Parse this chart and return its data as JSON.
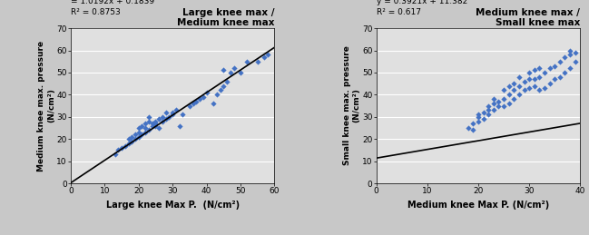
{
  "plot1": {
    "title": "Large knee max /\nMedium knee max",
    "xlabel": "Large knee Max P.  (N/cm²)",
    "ylabel": "Medium knee max. pressure\n(N/cm²)",
    "equation": "= 1.0192x + 0.1839",
    "r2": "R² = 0.8753",
    "slope": 1.0192,
    "intercept": 0.1839,
    "xlim": [
      0,
      60
    ],
    "ylim": [
      0,
      70
    ],
    "xticks": [
      0,
      10,
      20,
      30,
      40,
      50,
      60
    ],
    "yticks": [
      0,
      10,
      20,
      30,
      40,
      50,
      60,
      70
    ],
    "scatter_x": [
      13,
      14,
      15,
      16,
      17,
      17,
      18,
      18,
      19,
      19,
      20,
      20,
      20,
      21,
      21,
      22,
      22,
      22,
      23,
      23,
      23,
      24,
      24,
      25,
      25,
      25,
      26,
      26,
      27,
      27,
      28,
      28,
      29,
      30,
      30,
      31,
      32,
      33,
      35,
      36,
      37,
      38,
      39,
      40,
      42,
      43,
      44,
      45,
      45,
      46,
      47,
      48,
      50,
      52,
      55,
      57,
      58
    ],
    "scatter_y": [
      13,
      15,
      16,
      17,
      18,
      20,
      19,
      21,
      20,
      22,
      21,
      25,
      23,
      22,
      26,
      23,
      27,
      25,
      24,
      28,
      30,
      26,
      27,
      27,
      28,
      26,
      29,
      25,
      28,
      30,
      29,
      32,
      30,
      31,
      32,
      33,
      26,
      31,
      35,
      36,
      37,
      38,
      39,
      41,
      36,
      40,
      42,
      44,
      51,
      46,
      50,
      52,
      50,
      55,
      55,
      57,
      58
    ]
  },
  "plot2": {
    "title": "Medium knee max /\nSmall knee max",
    "xlabel": "Medium knee Max P. (N/cm²)",
    "ylabel": "Small knee max. pressure\n(N/cm²)",
    "equation": "y = 0.3921x + 11.382",
    "r2": "R² = 0.617",
    "slope": 0.3921,
    "intercept": 11.382,
    "xlim": [
      0,
      40
    ],
    "ylim": [
      0,
      70
    ],
    "xticks": [
      0,
      10,
      20,
      30,
      40
    ],
    "yticks": [
      0,
      10,
      20,
      30,
      40,
      50,
      60,
      70
    ],
    "scatter_x": [
      18,
      19,
      19,
      20,
      20,
      20,
      21,
      21,
      22,
      22,
      22,
      23,
      23,
      23,
      24,
      24,
      25,
      25,
      25,
      26,
      26,
      26,
      27,
      27,
      27,
      28,
      28,
      28,
      29,
      29,
      30,
      30,
      30,
      31,
      31,
      31,
      32,
      32,
      32,
      33,
      33,
      34,
      34,
      35,
      35,
      36,
      36,
      37,
      37,
      38,
      38,
      38,
      39,
      39
    ],
    "scatter_y": [
      25,
      24,
      27,
      28,
      30,
      31,
      29,
      32,
      31,
      35,
      33,
      33,
      36,
      38,
      35,
      37,
      35,
      38,
      42,
      36,
      40,
      44,
      38,
      42,
      45,
      40,
      44,
      48,
      42,
      46,
      43,
      47,
      50,
      44,
      47,
      51,
      42,
      48,
      52,
      43,
      50,
      45,
      52,
      47,
      53,
      48,
      55,
      50,
      57,
      52,
      58,
      60,
      55,
      59
    ]
  },
  "scatter_color": "#4472C4",
  "line_color": "black",
  "bg_color": "#E0E0E0",
  "grid_color": "white",
  "fig_bg": "#C8C8C8"
}
